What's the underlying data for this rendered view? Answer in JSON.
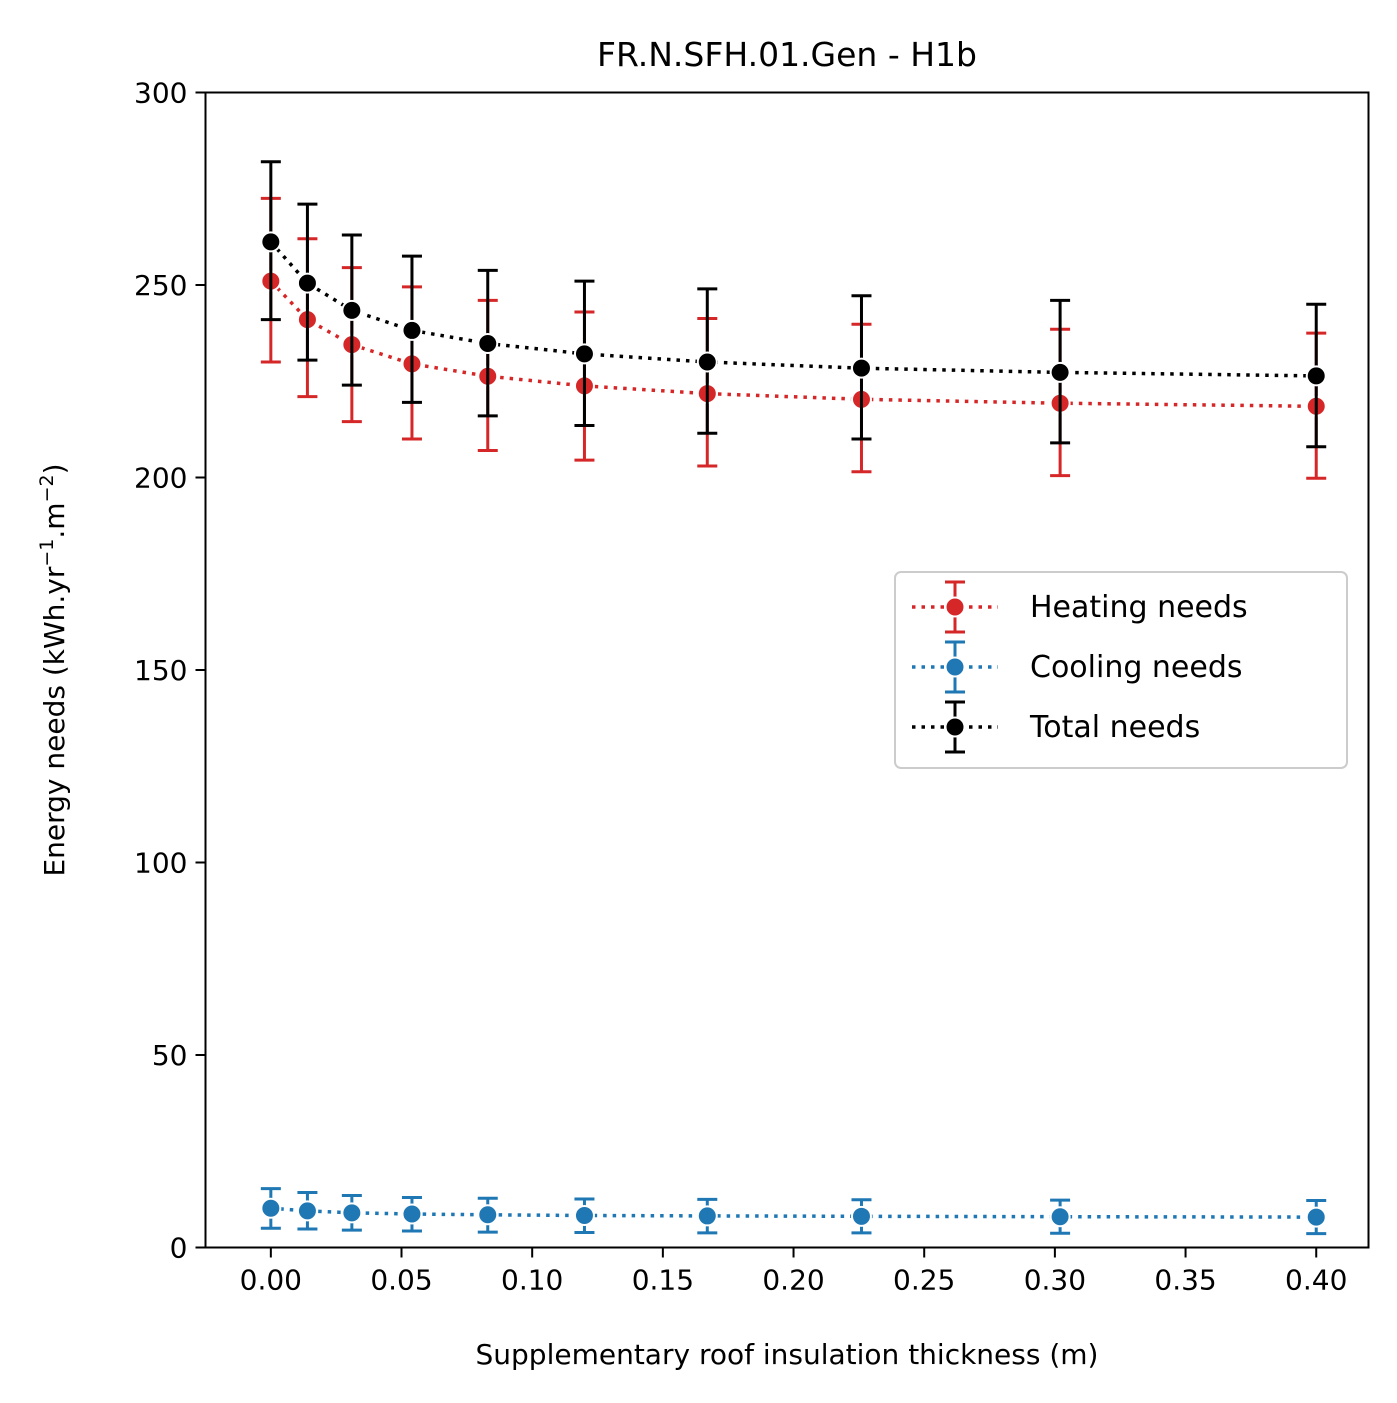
{
  "chart_data": {
    "type": "line",
    "title": "FR.N.SFH.01.Gen - H1b",
    "xlabel": "Supplementary roof insulation thickness (m)",
    "ylabel_main": "Energy needs (kWh.yr",
    "ylabel_sup1": "−1",
    "ylabel_mid": ".m",
    "ylabel_sup2": "−2",
    "ylabel_end": ")",
    "xlim": [
      -0.025,
      0.42
    ],
    "ylim": [
      0,
      300
    ],
    "xticks": [
      0.0,
      0.05,
      0.1,
      0.15,
      0.2,
      0.25,
      0.3,
      0.35,
      0.4
    ],
    "xtick_labels": [
      "0.00",
      "0.05",
      "0.10",
      "0.15",
      "0.20",
      "0.25",
      "0.30",
      "0.35",
      "0.40"
    ],
    "yticks": [
      0,
      50,
      100,
      150,
      200,
      250,
      300
    ],
    "ytick_labels": [
      "0",
      "50",
      "100",
      "150",
      "200",
      "250",
      "300"
    ],
    "x": [
      0.0,
      0.014,
      0.031,
      0.054,
      0.083,
      0.12,
      0.167,
      0.226,
      0.302,
      0.4
    ],
    "legend_position": "center-right",
    "series": [
      {
        "name": "Heating needs",
        "color": "#d62728",
        "values": [
          251.0,
          241.0,
          234.5,
          229.5,
          226.3,
          223.8,
          221.8,
          220.3,
          219.3,
          218.5
        ],
        "err_low": [
          230.0,
          221.0,
          214.5,
          210.0,
          207.0,
          204.5,
          203.0,
          201.5,
          200.5,
          199.8
        ],
        "err_high": [
          272.5,
          262.0,
          254.5,
          249.5,
          246.0,
          243.0,
          241.3,
          239.8,
          238.5,
          237.5
        ]
      },
      {
        "name": "Cooling needs",
        "color": "#1f77b4",
        "values": [
          10.2,
          9.5,
          9.0,
          8.7,
          8.5,
          8.3,
          8.2,
          8.1,
          8.0,
          7.9
        ],
        "err_low": [
          5.0,
          4.8,
          4.5,
          4.3,
          4.0,
          3.9,
          3.8,
          3.8,
          3.7,
          3.6
        ],
        "err_high": [
          15.3,
          14.3,
          13.5,
          13.0,
          12.8,
          12.6,
          12.5,
          12.4,
          12.3,
          12.2
        ]
      },
      {
        "name": "Total needs",
        "color": "#000000",
        "values": [
          261.2,
          250.5,
          243.4,
          238.2,
          234.8,
          232.1,
          230.0,
          228.4,
          227.3,
          226.4
        ],
        "err_low": [
          241.0,
          230.5,
          224.0,
          219.5,
          216.0,
          213.5,
          211.5,
          210.0,
          209.0,
          208.0
        ],
        "err_high": [
          282.0,
          271.0,
          263.0,
          257.5,
          253.8,
          251.0,
          249.0,
          247.2,
          246.0,
          245.0
        ]
      }
    ]
  }
}
